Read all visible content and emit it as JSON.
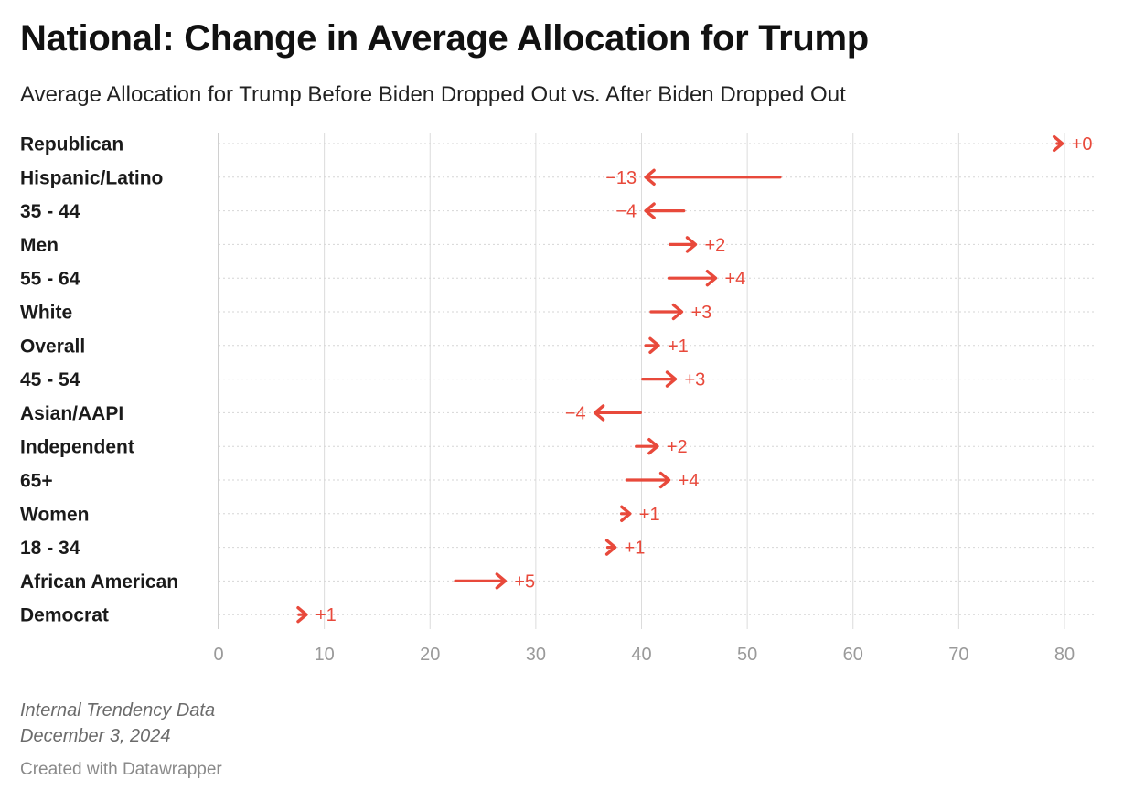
{
  "header": {
    "title": "National: Change in Average Allocation for Trump",
    "subtitle": "Average Allocation for Trump Before Biden Dropped Out vs. After Biden Dropped Out"
  },
  "footer": {
    "source": "Internal Trendency Data",
    "date": "December 3, 2024",
    "credit": "Created with Datawrapper"
  },
  "colors": {
    "arrow": "#e8493b",
    "grid": "#dcdcdc",
    "row_line": "#d6d6d6"
  },
  "chart_data": {
    "type": "arrow",
    "xlim": [
      0,
      80
    ],
    "xticks": [
      0,
      10,
      20,
      30,
      40,
      50,
      60,
      70,
      80
    ],
    "grid": true,
    "rows": [
      {
        "label": "Republican",
        "before": 79.3,
        "after": 79.8,
        "delta_label": "+0"
      },
      {
        "label": "Hispanic/Latino",
        "before": 53.1,
        "after": 40.4,
        "delta_label": "−13"
      },
      {
        "label": "35 - 44",
        "before": 44.0,
        "after": 40.4,
        "delta_label": "−4"
      },
      {
        "label": "Men",
        "before": 42.7,
        "after": 45.1,
        "delta_label": "+2"
      },
      {
        "label": "55 - 64",
        "before": 42.6,
        "after": 47.0,
        "delta_label": "+4"
      },
      {
        "label": "White",
        "before": 40.9,
        "after": 43.8,
        "delta_label": "+3"
      },
      {
        "label": "Overall",
        "before": 40.4,
        "after": 41.6,
        "delta_label": "+1"
      },
      {
        "label": "45 - 54",
        "before": 40.1,
        "after": 43.2,
        "delta_label": "+3"
      },
      {
        "label": "Asian/AAPI",
        "before": 39.9,
        "after": 35.6,
        "delta_label": "−4"
      },
      {
        "label": "Independent",
        "before": 39.5,
        "after": 41.5,
        "delta_label": "+2"
      },
      {
        "label": "65+",
        "before": 38.6,
        "after": 42.6,
        "delta_label": "+4"
      },
      {
        "label": "Women",
        "before": 38.1,
        "after": 38.9,
        "delta_label": "+1"
      },
      {
        "label": "18 - 34",
        "before": 36.8,
        "after": 37.5,
        "delta_label": "+1"
      },
      {
        "label": "African American",
        "before": 22.4,
        "after": 27.1,
        "delta_label": "+5"
      },
      {
        "label": "Democrat",
        "before": 7.6,
        "after": 8.3,
        "delta_label": "+1"
      }
    ]
  }
}
